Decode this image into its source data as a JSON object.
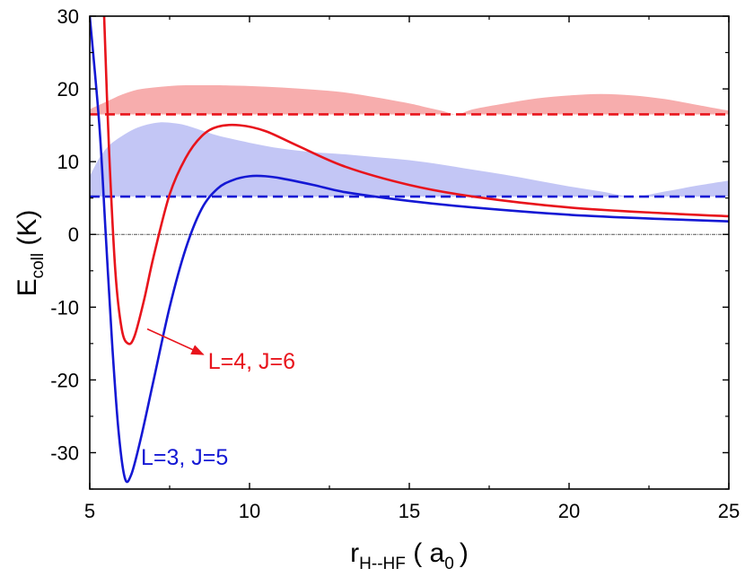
{
  "chart_data": {
    "type": "line",
    "xlabel": {
      "main": "r",
      "sub": "H--HF",
      "rest": " ( a",
      "unit_sub": "0",
      "close": ")"
    },
    "ylabel": {
      "main": "E",
      "sub": "coll",
      "rest": " (K)"
    },
    "xlim": [
      5,
      25
    ],
    "ylim": [
      -35,
      30
    ],
    "xticks": [
      5,
      10,
      15,
      20,
      25
    ],
    "yticks": [
      -30,
      -20,
      -10,
      0,
      10,
      20,
      30
    ],
    "grid": false,
    "legend": "none",
    "colors": {
      "red": "#e8141c",
      "blue": "#1418d4",
      "red_fill": "#f7adad",
      "blue_fill": "#c3c6f5",
      "zero_line": "#555555"
    },
    "series": [
      {
        "color": "#e8141c",
        "x": [
          5.45,
          5.6,
          5.8,
          6.0,
          6.2,
          6.4,
          6.7,
          7.0,
          7.5,
          8.0,
          8.5,
          9.0,
          9.7,
          10.5,
          11.5,
          13.0,
          15.0,
          17.0,
          20.0,
          23.0,
          25.0
        ],
        "y": [
          30,
          12,
          -5,
          -13,
          -15,
          -14,
          -9,
          -3,
          5.5,
          10.5,
          13.5,
          14.8,
          15.0,
          14.2,
          12.2,
          9.3,
          6.8,
          5.2,
          3.7,
          2.9,
          2.5
        ]
      },
      {
        "color": "#1418d4",
        "x": [
          5.0,
          5.3,
          5.5,
          5.7,
          5.9,
          6.1,
          6.3,
          6.6,
          7.0,
          7.5,
          8.0,
          8.5,
          9.0,
          9.5,
          10.0,
          10.5,
          11.0,
          12.0,
          13.0,
          15.0,
          17.0,
          20.0,
          23.0,
          25.0
        ],
        "y": [
          30,
          15,
          0,
          -15,
          -27,
          -33.5,
          -33,
          -28,
          -20,
          -10,
          -2,
          3.5,
          6.3,
          7.5,
          8.0,
          8.0,
          7.7,
          6.8,
          5.8,
          4.6,
          3.7,
          2.7,
          2.1,
          1.8
        ]
      }
    ],
    "thresholds": [
      {
        "color": "#e8141c",
        "y": 16.5
      },
      {
        "color": "#1418d4",
        "y": 5.2
      }
    ],
    "bands": [
      {
        "color": "#f7adad",
        "base": 16.5,
        "x": [
          5.0,
          5.5,
          6.0,
          6.5,
          7.0,
          7.5,
          8.0,
          8.5,
          9.0,
          10.0,
          11.0,
          12.0,
          13.0,
          14.0,
          15.0,
          15.5,
          16.0,
          16.5,
          17.0,
          18.0,
          19.0,
          20.0,
          21.0,
          22.0,
          23.0,
          24.0,
          25.0
        ],
        "y": [
          17.2,
          18.2,
          19.2,
          19.9,
          20.2,
          20.4,
          20.5,
          20.5,
          20.5,
          20.4,
          20.2,
          19.9,
          19.5,
          18.8,
          18.0,
          17.5,
          17.0,
          16.5,
          17.2,
          18.0,
          18.7,
          19.1,
          19.3,
          19.1,
          18.6,
          17.8,
          17.0
        ]
      },
      {
        "color": "#c3c6f5",
        "base": 5.2,
        "x": [
          5.0,
          5.3,
          5.6,
          6.0,
          6.4,
          6.8,
          7.2,
          7.6,
          8.0,
          8.5,
          9.0,
          10.0,
          11.0,
          12.0,
          13.0,
          14.0,
          15.0,
          16.0,
          17.0,
          18.0,
          19.0,
          20.0,
          21.0,
          22.0,
          23.0,
          24.0,
          25.0
        ],
        "y": [
          8.0,
          10.5,
          12.2,
          13.5,
          14.5,
          15.1,
          15.4,
          15.3,
          15.0,
          14.3,
          13.6,
          12.6,
          11.8,
          11.3,
          11.0,
          10.6,
          10.2,
          9.6,
          8.9,
          8.2,
          7.4,
          6.6,
          5.9,
          5.2,
          5.9,
          6.7,
          7.4
        ]
      }
    ],
    "annotations": [
      {
        "text": "L=4, J=6",
        "color": "#e8141c",
        "x": 8.7,
        "y": -18.5,
        "arrow_from": [
          6.8,
          -13.0
        ],
        "arrow_to": [
          8.55,
          -16.5
        ]
      },
      {
        "text": "L=3, J=5",
        "color": "#1418d4",
        "x": 6.6,
        "y": -31.7
      }
    ]
  }
}
